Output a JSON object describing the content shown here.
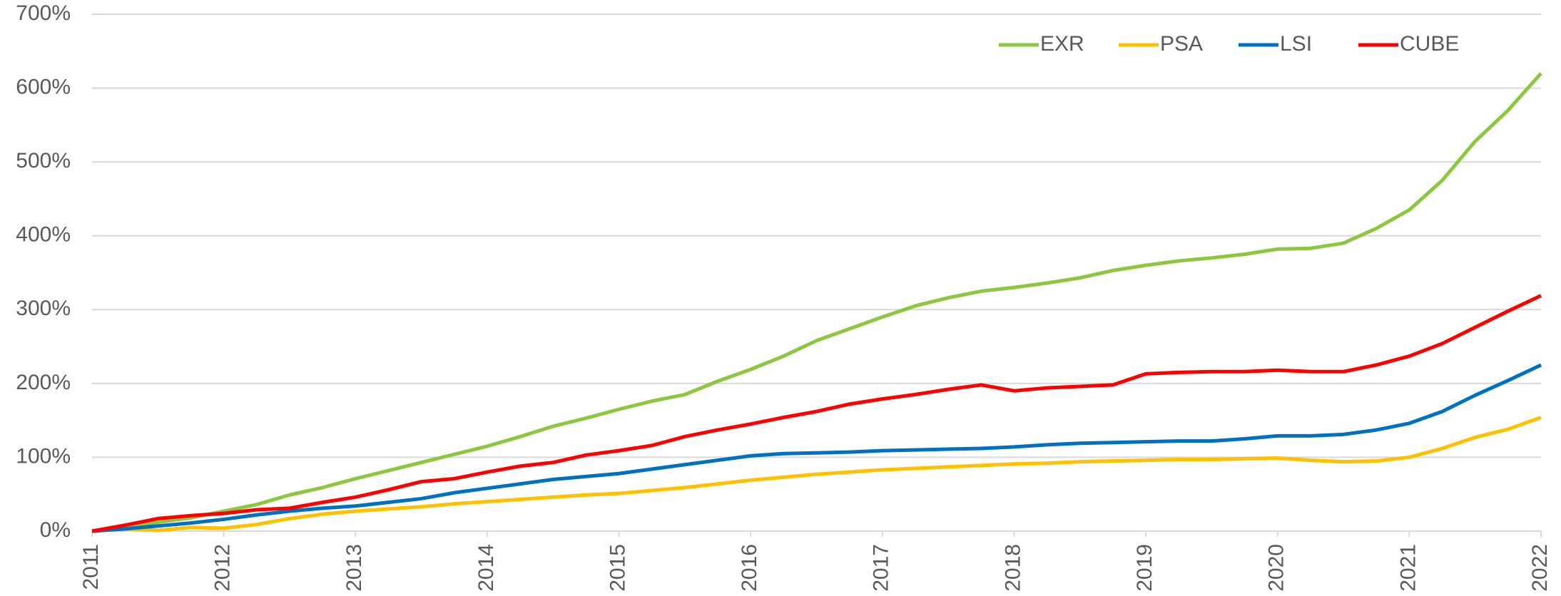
{
  "chart_data": {
    "type": "line",
    "x": [
      2011,
      2011.25,
      2011.5,
      2011.75,
      2012,
      2012.25,
      2012.5,
      2012.75,
      2013,
      2013.25,
      2013.5,
      2013.75,
      2014,
      2014.25,
      2014.5,
      2014.75,
      2015,
      2015.25,
      2015.5,
      2015.75,
      2016,
      2016.25,
      2016.5,
      2016.75,
      2017,
      2017.25,
      2017.5,
      2017.75,
      2018,
      2018.25,
      2018.5,
      2018.75,
      2019,
      2019.25,
      2019.5,
      2019.75,
      2020,
      2020.25,
      2020.5,
      2020.75,
      2021,
      2021.25,
      2021.5,
      2021.75,
      2022
    ],
    "series": [
      {
        "name": "EXR",
        "color": "#8dc63f",
        "values": [
          0,
          5,
          12,
          18,
          27,
          36,
          49,
          59,
          71,
          82,
          93,
          104,
          115,
          128,
          142,
          153,
          165,
          176,
          185,
          203,
          219,
          237,
          258,
          274,
          290,
          305,
          316,
          325,
          330,
          336,
          343,
          353,
          360,
          366,
          370,
          375,
          382,
          383,
          390,
          410,
          435,
          475,
          528,
          570,
          620
        ]
      },
      {
        "name": "PSA",
        "color": "#ffc000",
        "values": [
          0,
          3,
          1,
          5,
          4,
          9,
          17,
          23,
          27,
          30,
          33,
          37,
          40,
          43,
          46,
          49,
          51,
          55,
          59,
          64,
          69,
          73,
          77,
          80,
          83,
          85,
          87,
          89,
          91,
          92,
          94,
          95,
          96,
          97,
          97,
          98,
          99,
          96,
          94,
          95,
          100,
          112,
          127,
          138,
          154
        ]
      },
      {
        "name": "LSI",
        "color": "#0070c0",
        "values": [
          0,
          3,
          7,
          11,
          16,
          22,
          27,
          31,
          34,
          39,
          44,
          52,
          58,
          64,
          70,
          74,
          78,
          84,
          90,
          96,
          102,
          105,
          106,
          107,
          109,
          110,
          111,
          112,
          114,
          117,
          119,
          120,
          121,
          122,
          122,
          125,
          129,
          129,
          131,
          137,
          146,
          162,
          184,
          204,
          225
        ]
      },
      {
        "name": "CUBE",
        "color": "#ff0000",
        "values": [
          0,
          8,
          17,
          21,
          24,
          29,
          31,
          39,
          46,
          56,
          67,
          71,
          80,
          88,
          93,
          103,
          109,
          116,
          128,
          137,
          145,
          154,
          162,
          172,
          179,
          185,
          192,
          198,
          190,
          194,
          196,
          198,
          213,
          215,
          216,
          216,
          218,
          216,
          216,
          225,
          237,
          254,
          276,
          298,
          319
        ]
      }
    ],
    "xlim": [
      2011,
      2022
    ],
    "xticks": [
      2011,
      2012,
      2013,
      2014,
      2015,
      2016,
      2017,
      2018,
      2019,
      2020,
      2021,
      2022
    ],
    "ylim": [
      0,
      700
    ],
    "yticks": [
      {
        "value": 0,
        "label": "0%"
      },
      {
        "value": 100,
        "label": "100%"
      },
      {
        "value": 200,
        "label": "200%"
      },
      {
        "value": 300,
        "label": "300%"
      },
      {
        "value": 400,
        "label": "400%"
      },
      {
        "value": 500,
        "label": "500%"
      },
      {
        "value": 600,
        "label": "600%"
      },
      {
        "value": 700,
        "label": "700%"
      }
    ],
    "grid": true,
    "legend": "upper right"
  }
}
